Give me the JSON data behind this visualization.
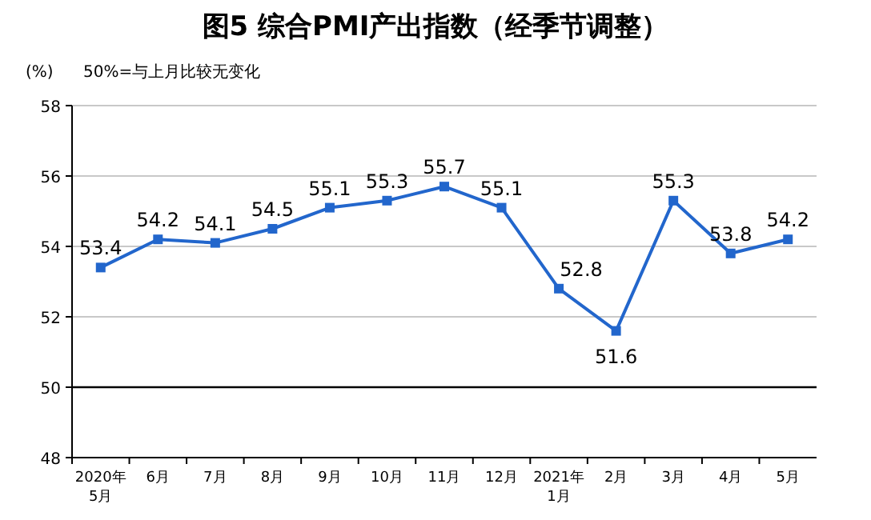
{
  "chart_data": {
    "type": "line",
    "title": "图5 综合PMI产出指数（经季节调整）",
    "ylabel": "(%)",
    "annotations": [
      "50%=与上月比较无变化"
    ],
    "categories": [
      "2020年\n5月",
      "6月",
      "7月",
      "8月",
      "9月",
      "10月",
      "11月",
      "12月",
      "2021年\n1月",
      "2月",
      "3月",
      "4月",
      "5月"
    ],
    "series": [
      {
        "color": "#2266cc",
        "values": [
          53.4,
          54.2,
          54.1,
          54.5,
          55.1,
          55.3,
          55.7,
          55.1,
          52.8,
          51.6,
          55.3,
          53.8,
          54.2
        ]
      }
    ],
    "ylim": [
      48,
      58
    ],
    "yticks": [
      48,
      50,
      52,
      54,
      56,
      58
    ],
    "ref_lines": [
      {
        "axis": "y",
        "value": 50,
        "color": "#000000"
      }
    ],
    "grid": "y",
    "marker": "square",
    "line_style": "solid",
    "data_labels": true
  }
}
